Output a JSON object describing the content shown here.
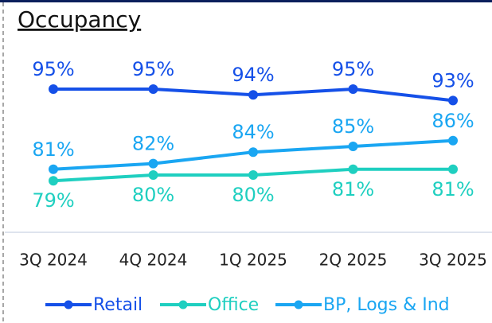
{
  "chart_data": {
    "type": "line",
    "title": "Occupancy",
    "categories": [
      "3Q 2024",
      "4Q 2024",
      "1Q 2025",
      "2Q 2025",
      "3Q 2025"
    ],
    "series": [
      {
        "name": "Retail",
        "color": "#1550e8",
        "values": [
          95,
          95,
          94,
          95,
          93
        ],
        "value_labels": [
          "95%",
          "95%",
          "94%",
          "95%",
          "93%"
        ]
      },
      {
        "name": "Office",
        "color": "#1fcfc0",
        "values": [
          79,
          80,
          80,
          81,
          81
        ],
        "value_labels": [
          "79%",
          "80%",
          "80%",
          "81%",
          "81%"
        ]
      },
      {
        "name": "BP, Logs & Ind",
        "color": "#1aa6f2",
        "values": [
          81,
          82,
          84,
          85,
          86
        ],
        "value_labels": [
          "81%",
          "82%",
          "84%",
          "85%",
          "86%"
        ]
      }
    ],
    "ylim": [
      70,
      100
    ],
    "legend": "bottom"
  }
}
